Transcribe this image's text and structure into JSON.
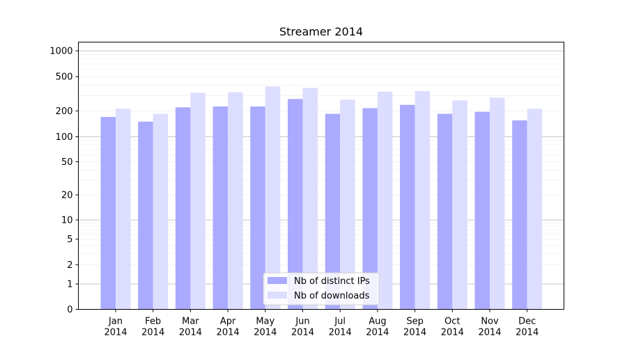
{
  "chart_data": {
    "type": "bar",
    "title": "Streamer 2014",
    "xlabel": "",
    "ylabel": "",
    "yscale": "symlog",
    "ylim": [
      0,
      1300
    ],
    "grid": true,
    "legend_position": "lower-center",
    "categories": [
      "Jan\n2014",
      "Feb\n2014",
      "Mar\n2014",
      "Apr\n2014",
      "May\n2014",
      "Jun\n2014",
      "Jul\n2014",
      "Aug\n2014",
      "Sep\n2014",
      "Oct\n2014",
      "Nov\n2014",
      "Dec\n2014"
    ],
    "category_labels": [
      [
        "Jan",
        "2014"
      ],
      [
        "Feb",
        "2014"
      ],
      [
        "Mar",
        "2014"
      ],
      [
        "Apr",
        "2014"
      ],
      [
        "May",
        "2014"
      ],
      [
        "Jun",
        "2014"
      ],
      [
        "Jul",
        "2014"
      ],
      [
        "Aug",
        "2014"
      ],
      [
        "Sep",
        "2014"
      ],
      [
        "Oct",
        "2014"
      ],
      [
        "Nov",
        "2014"
      ],
      [
        "Dec",
        "2014"
      ]
    ],
    "y_ticks": [
      0,
      1,
      2,
      5,
      10,
      20,
      50,
      100,
      200,
      500,
      1000
    ],
    "y_tick_labels": [
      "0",
      "1",
      "2",
      "5",
      "10",
      "20",
      "50",
      "100",
      "200",
      "500",
      "1000"
    ],
    "series": [
      {
        "name": "Nb of distinct IPs",
        "color": "#aaaaff",
        "values": [
          170,
          150,
          220,
          225,
          225,
          275,
          185,
          215,
          235,
          185,
          195,
          155
        ]
      },
      {
        "name": "Nb of downloads",
        "color": "#ddddff",
        "values": [
          212,
          185,
          325,
          330,
          385,
          370,
          270,
          335,
          340,
          265,
          285,
          212
        ]
      }
    ]
  }
}
